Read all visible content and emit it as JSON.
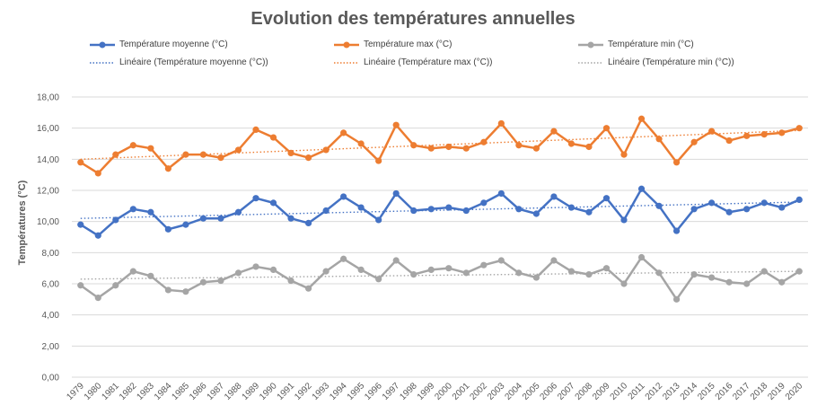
{
  "chart_data": {
    "type": "line",
    "title": "Evolution des températures annuelles",
    "ylabel": "Températures (°C)",
    "xlabel": "",
    "ylim": [
      0,
      18
    ],
    "ytick_labels": [
      "0,00",
      "2,00",
      "4,00",
      "6,00",
      "8,00",
      "10,00",
      "12,00",
      "14,00",
      "16,00",
      "18,00"
    ],
    "grid": true,
    "legend_position": "top",
    "categories": [
      "1979",
      "1980",
      "1981",
      "1982",
      "1983",
      "1984",
      "1985",
      "1986",
      "1987",
      "1988",
      "1989",
      "1990",
      "1991",
      "1992",
      "1993",
      "1994",
      "1995",
      "1996",
      "1997",
      "1998",
      "1999",
      "2000",
      "2001",
      "2002",
      "2003",
      "2004",
      "2005",
      "2006",
      "2007",
      "2008",
      "2009",
      "2010",
      "2011",
      "2012",
      "2013",
      "2014",
      "2015",
      "2016",
      "2017",
      "2018",
      "2019",
      "2020"
    ],
    "series": [
      {
        "name": "Température moyenne (°C)",
        "color": "#4472c4",
        "values": [
          9.8,
          9.1,
          10.1,
          10.8,
          10.6,
          9.5,
          9.8,
          10.2,
          10.2,
          10.6,
          11.5,
          11.2,
          10.2,
          9.9,
          10.7,
          11.6,
          10.9,
          10.1,
          11.8,
          10.7,
          10.8,
          10.9,
          10.7,
          11.2,
          11.8,
          10.8,
          10.5,
          11.6,
          10.9,
          10.6,
          11.5,
          10.1,
          12.1,
          11.0,
          9.4,
          10.8,
          11.2,
          10.6,
          10.8,
          11.2,
          10.9,
          11.4
        ]
      },
      {
        "name": "Température max (°C)",
        "color": "#ed7d31",
        "values": [
          13.8,
          13.1,
          14.3,
          14.9,
          14.7,
          13.4,
          14.3,
          14.3,
          14.1,
          14.6,
          15.9,
          15.4,
          14.4,
          14.1,
          14.6,
          15.7,
          15.0,
          13.9,
          16.2,
          14.9,
          14.7,
          14.8,
          14.7,
          15.1,
          16.3,
          14.9,
          14.7,
          15.8,
          15.0,
          14.8,
          16.0,
          14.3,
          16.6,
          15.3,
          13.8,
          15.1,
          15.8,
          15.2,
          15.5,
          15.6,
          15.7,
          16.0
        ]
      },
      {
        "name": "Température min (°C)",
        "color": "#a5a5a5",
        "values": [
          5.9,
          5.1,
          5.9,
          6.8,
          6.5,
          5.6,
          5.5,
          6.1,
          6.2,
          6.7,
          7.1,
          6.9,
          6.2,
          5.7,
          6.8,
          7.6,
          6.9,
          6.3,
          7.5,
          6.6,
          6.9,
          7.0,
          6.7,
          7.2,
          7.5,
          6.7,
          6.4,
          7.5,
          6.8,
          6.6,
          7.0,
          6.0,
          7.7,
          6.7,
          5.0,
          6.6,
          6.4,
          6.1,
          6.0,
          6.8,
          6.1,
          6.8
        ]
      }
    ],
    "trendlines": [
      {
        "name": "Linéaire (Température moyenne (°C))",
        "color": "#4472c4",
        "start": 10.2,
        "end": 11.25
      },
      {
        "name": "Linéaire (Température max (°C))",
        "color": "#ed7d31",
        "start": 14.0,
        "end": 15.85
      },
      {
        "name": "Linéaire (Température min (°C))",
        "color": "#a5a5a5",
        "start": 6.3,
        "end": 6.8
      }
    ]
  }
}
